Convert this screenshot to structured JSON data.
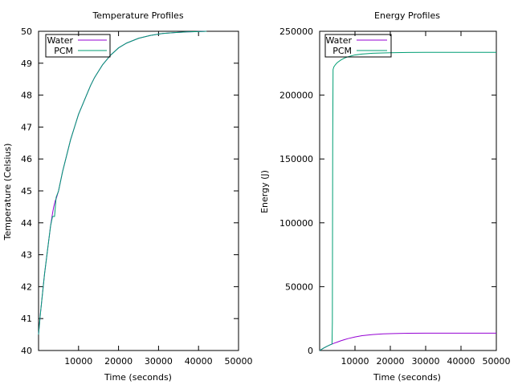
{
  "chart_data": [
    {
      "type": "line",
      "title": "Temperature Profiles",
      "xlabel": "Time (seconds)",
      "ylabel": "Temperature (Celsius)",
      "xlim": [
        0,
        50000
      ],
      "ylim": [
        40,
        50
      ],
      "xticks": [
        10000,
        20000,
        30000,
        40000,
        50000
      ],
      "yticks": [
        40,
        41,
        42,
        43,
        44,
        45,
        46,
        47,
        48,
        49,
        50
      ],
      "legend_position": "top-left",
      "series": [
        {
          "name": "Water",
          "color": "#9400d3",
          "x": [
            0,
            500,
            1000,
            1500,
            2000,
            2500,
            3000,
            3500,
            3800,
            4000,
            4200,
            4400,
            5000,
            6000,
            7000,
            8000,
            9000,
            10000,
            11000,
            12000,
            13000,
            14000,
            15000,
            16000,
            17000,
            18000,
            20000,
            22000,
            25000,
            28000,
            31000,
            34000,
            37000,
            40000,
            42000
          ],
          "y": [
            40.5,
            41.2,
            41.8,
            42.4,
            42.9,
            43.4,
            43.9,
            44.3,
            44.5,
            44.6,
            44.7,
            44.75,
            45.0,
            45.6,
            46.1,
            46.6,
            47.0,
            47.4,
            47.7,
            48.0,
            48.3,
            48.55,
            48.75,
            48.95,
            49.1,
            49.25,
            49.48,
            49.63,
            49.78,
            49.87,
            49.93,
            49.96,
            49.98,
            49.99,
            50.0
          ]
        },
        {
          "name": "PCM",
          "color": "#009e73",
          "x": [
            0,
            500,
            1000,
            1500,
            2000,
            2500,
            3000,
            3500,
            3800,
            4000,
            4200,
            4400,
            5000,
            6000,
            7000,
            8000,
            9000,
            10000,
            11000,
            12000,
            13000,
            14000,
            15000,
            16000,
            17000,
            18000,
            20000,
            22000,
            25000,
            28000,
            31000,
            34000,
            37000,
            40000,
            42000
          ],
          "y": [
            40.5,
            41.2,
            41.8,
            42.4,
            42.9,
            43.4,
            43.9,
            44.2,
            44.2,
            44.2,
            44.5,
            44.8,
            45.0,
            45.6,
            46.1,
            46.6,
            47.0,
            47.4,
            47.7,
            48.0,
            48.3,
            48.55,
            48.75,
            48.95,
            49.1,
            49.25,
            49.48,
            49.63,
            49.78,
            49.87,
            49.93,
            49.96,
            49.98,
            49.99,
            50.0
          ]
        }
      ]
    },
    {
      "type": "line",
      "title": "Energy Profiles",
      "xlabel": "Time (seconds)",
      "ylabel": "Energy (J)",
      "xlim": [
        0,
        50000
      ],
      "ylim": [
        0,
        250000
      ],
      "xticks": [
        10000,
        20000,
        30000,
        40000,
        50000
      ],
      "yticks": [
        0,
        50000,
        100000,
        150000,
        200000,
        250000
      ],
      "legend_position": "top-left",
      "series": [
        {
          "name": "Water",
          "color": "#9400d3",
          "x": [
            0,
            500,
            1000,
            2000,
            3000,
            4000,
            5000,
            6000,
            7000,
            8000,
            10000,
            12000,
            15000,
            18000,
            21000,
            25000,
            30000,
            40000,
            50000
          ],
          "y": [
            0,
            800,
            1700,
            3200,
            4500,
            5600,
            6600,
            7600,
            8500,
            9300,
            10600,
            11600,
            12500,
            13000,
            13300,
            13500,
            13600,
            13600,
            13600
          ]
        },
        {
          "name": "PCM",
          "color": "#009e73",
          "x": [
            0,
            500,
            1000,
            2000,
            3000,
            3500,
            3600,
            3700,
            3800,
            4000,
            4500,
            5000,
            6000,
            7000,
            8000,
            10000,
            12000,
            15000,
            20000,
            25000,
            30000,
            40000,
            50000
          ],
          "y": [
            0,
            800,
            1700,
            3200,
            4500,
            5000,
            22000,
            165000,
            220000,
            222000,
            224000,
            225500,
            227500,
            229000,
            230000,
            231500,
            232200,
            232800,
            233200,
            233400,
            233500,
            233500,
            233500
          ]
        }
      ]
    }
  ]
}
